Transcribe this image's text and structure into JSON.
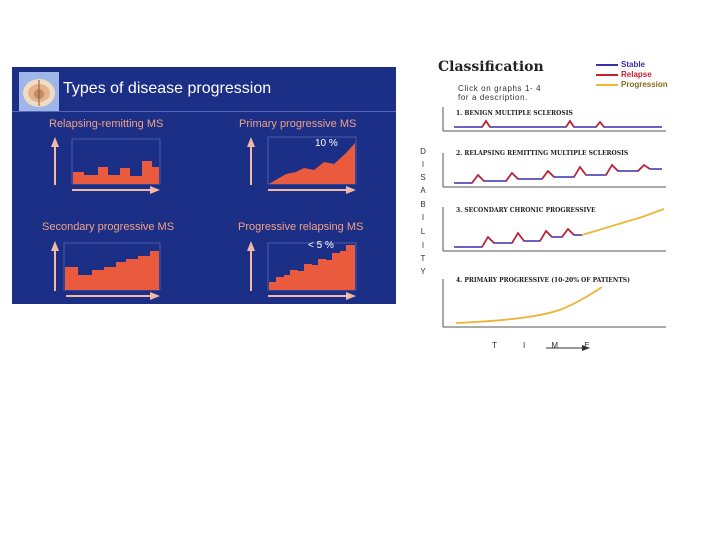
{
  "slide": {
    "title": "Types of disease progression",
    "panels": [
      {
        "label": "Relapsing-remitting MS",
        "annotation": ""
      },
      {
        "label": "Primary progressive MS",
        "annotation": "10 %"
      },
      {
        "label": "Secondary progressive MS",
        "annotation": ""
      },
      {
        "label": "Progressive relapsing MS",
        "annotation": "< 5 %"
      }
    ]
  },
  "classification": {
    "title": "Classification",
    "instruction_line1": "Click on graphs 1- 4",
    "instruction_line2": "for a description.",
    "legend": [
      {
        "label": "Stable",
        "color": "#3b2fb0"
      },
      {
        "label": "Relapse",
        "color": "#c81e2e"
      },
      {
        "label": "Progression",
        "color": "#efb43a"
      }
    ],
    "y_axis_letters": [
      "D",
      "I",
      "S",
      "A",
      "B",
      "I",
      "L",
      "I",
      "T",
      "Y"
    ],
    "graphs": [
      {
        "title": "1. BENIGN MULTIPLE SCLEROSIS"
      },
      {
        "title": "2. RELAPSING REMITTING MULTIPLE SCLEROSIS"
      },
      {
        "title": "3. SECONDARY CHRONIC PROGRESSIVE"
      },
      {
        "title": "4. PRIMARY PROGRESSIVE  (10-20% OF PATIENTS)"
      }
    ],
    "time_label": "T I M E"
  },
  "colors": {
    "slide_bg": "#1c2f86",
    "slide_title": "#ffffff",
    "panel_label": "#f0a184",
    "bars": "#ea5a3d",
    "axis": "#f3b9a6"
  }
}
